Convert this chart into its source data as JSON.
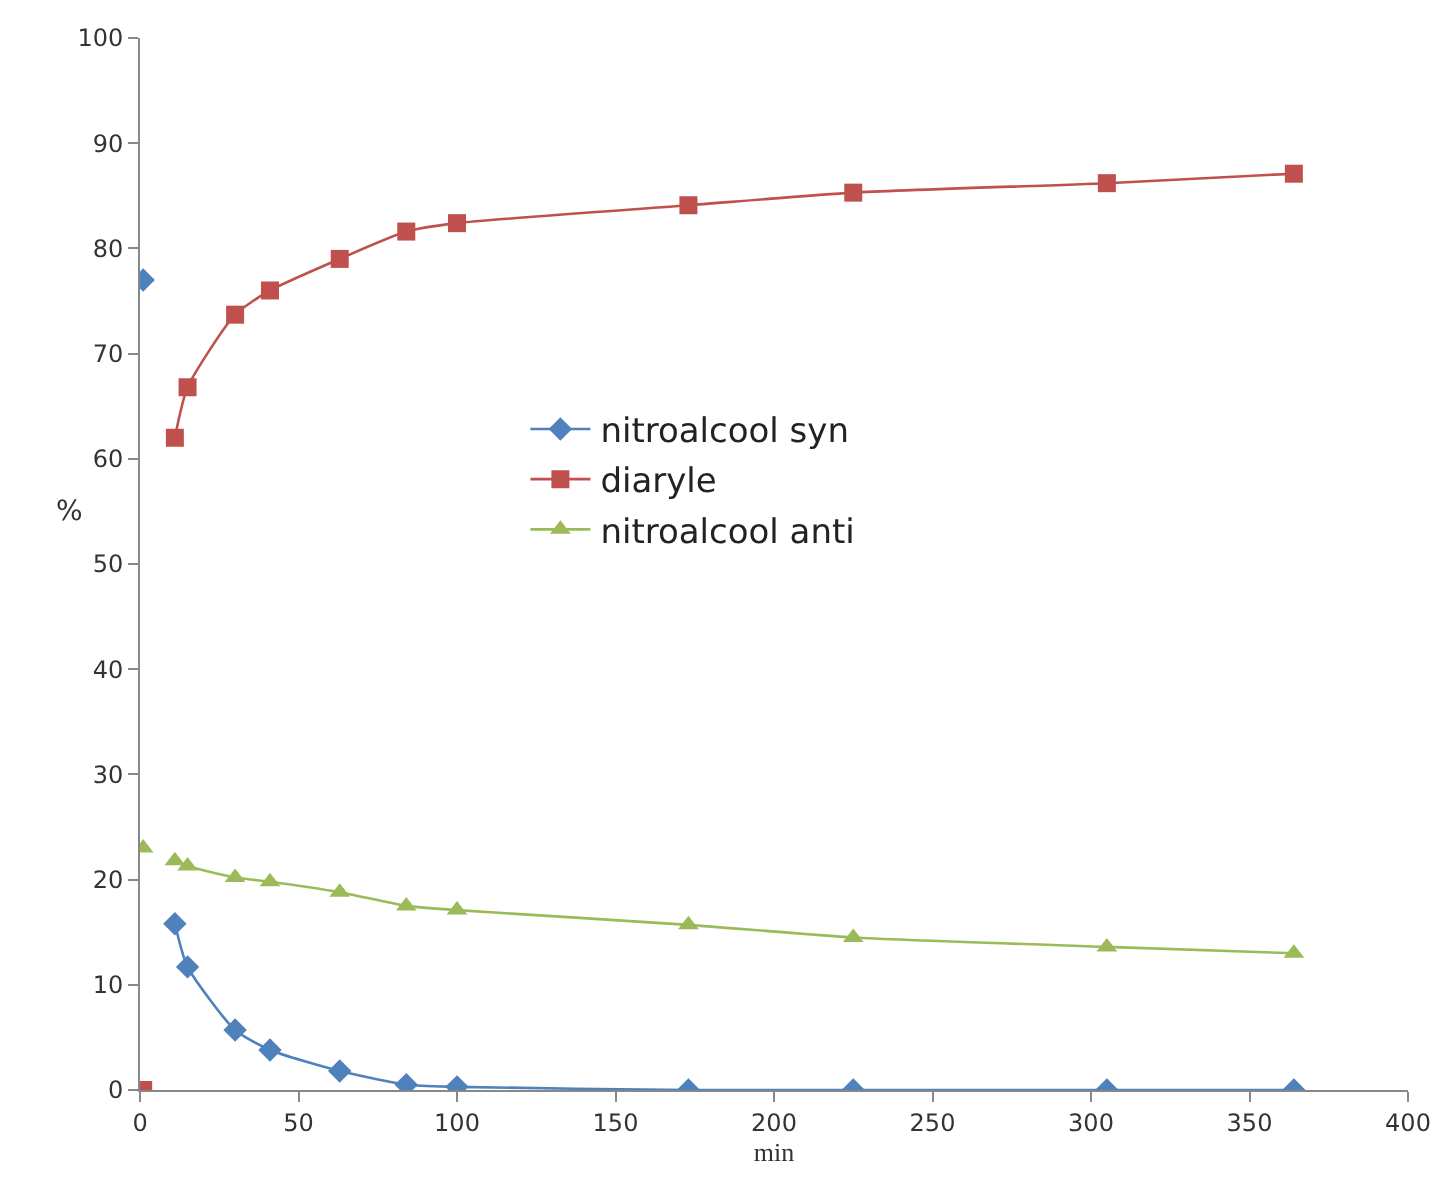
{
  "chart_data": {
    "type": "line",
    "xlabel": "min",
    "ylabel": "%",
    "xlim": [
      0,
      400
    ],
    "xticks": [
      0,
      50,
      100,
      150,
      200,
      250,
      300,
      350,
      400
    ],
    "ylim": [
      0,
      100
    ],
    "yticks": [
      0,
      10,
      20,
      30,
      40,
      50,
      60,
      70,
      80,
      90,
      100
    ],
    "legend": "left",
    "line_style": "solid",
    "series": [
      {
        "name": "nitroalcool syn",
        "color": "#4f81bd",
        "marker": "diamond",
        "x": [
          11,
          15,
          30,
          41,
          63,
          84,
          100,
          173,
          225,
          305,
          364
        ],
        "values": [
          15.8,
          11.7,
          5.7,
          3.8,
          1.8,
          0.5,
          0.3,
          0,
          0,
          0,
          0
        ]
      },
      {
        "name": "diaryle",
        "color": "#c0504d",
        "marker": "square",
        "x": [
          11,
          15,
          30,
          41,
          63,
          84,
          100,
          173,
          225,
          305,
          364
        ],
        "values": [
          62,
          66.8,
          73.7,
          76,
          79,
          81.6,
          82.4,
          84.1,
          85.3,
          86.2,
          87.1
        ]
      },
      {
        "name": "nitroalcool anti",
        "color": "#9bbb59",
        "marker": "triangle",
        "x": [
          11,
          15,
          30,
          41,
          63,
          84,
          100,
          173,
          225,
          305,
          364
        ],
        "values": [
          21.8,
          21.3,
          20.2,
          19.8,
          18.8,
          17.5,
          17.1,
          15.7,
          14.5,
          13.6,
          13
        ]
      },
      {
        "type": "scatter",
        "color": "#4f81bd",
        "marker": "diamond",
        "x": [
          1
        ],
        "values": [
          77
        ]
      },
      {
        "type": "scatter",
        "color": "#c0504d",
        "marker": "square",
        "x": [
          1
        ],
        "values": [
          0
        ]
      },
      {
        "type": "scatter",
        "color": "#9bbb59",
        "marker": "triangle",
        "x": [
          1
        ],
        "values": [
          23
        ]
      }
    ]
  }
}
